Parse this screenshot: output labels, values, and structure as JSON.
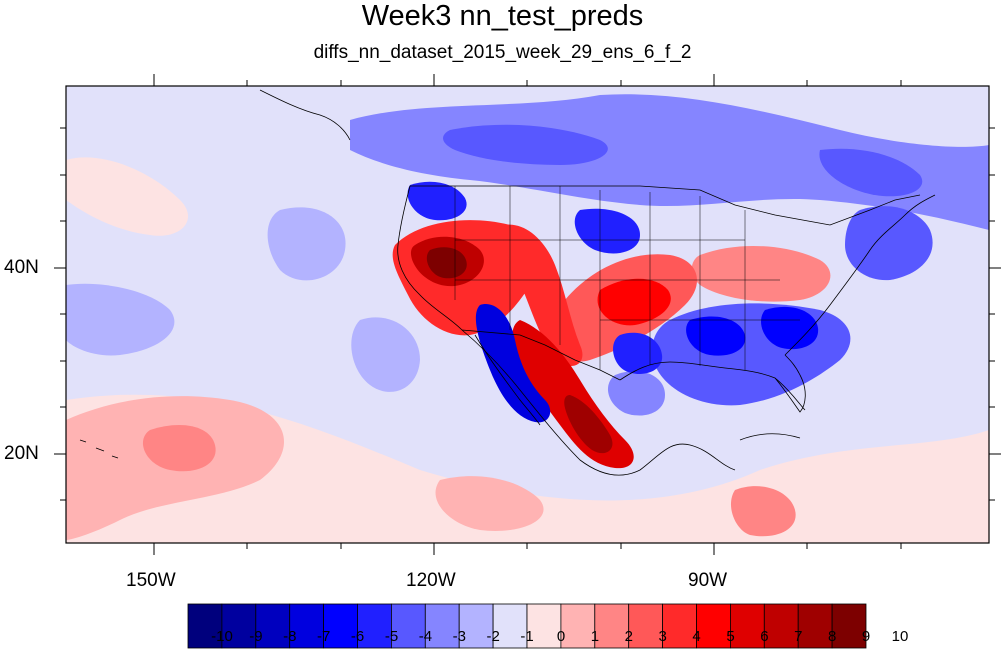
{
  "title": "Week3 nn_test_preds",
  "subtitle": "diffs_nn_dataset_2015_week_29_ens_6_f_2",
  "axes": {
    "x_tick_labels": [
      "150W",
      "120W",
      "90W"
    ],
    "y_tick_labels": [
      "40N",
      "20N"
    ]
  },
  "colorbar": {
    "labels": [
      "-10",
      "-9",
      "-8",
      "-7",
      "-6",
      "-5",
      "-4",
      "-3",
      "-2",
      "-1",
      "0",
      "1",
      "2",
      "3",
      "4",
      "5",
      "6",
      "7",
      "8",
      "9",
      "10"
    ],
    "colors": [
      "#00007d",
      "#00009f",
      "#0000bf",
      "#0000df",
      "#0000ff",
      "#2020ff",
      "#5858ff",
      "#8585ff",
      "#b3b3ff",
      "#e1e1fa",
      "#fde3e3",
      "#ffb3b3",
      "#ff8585",
      "#ff5858",
      "#ff2a2a",
      "#ff0000",
      "#df0000",
      "#bf0000",
      "#9f0000",
      "#7d0000"
    ]
  },
  "regions": [
    {
      "name": "ocean-background",
      "level": "-1"
    },
    {
      "name": "north-pacific-anomaly",
      "level": "-2"
    },
    {
      "name": "west-coast-warm-anomaly",
      "level": "8"
    },
    {
      "name": "baja-mexico-warm-anomaly",
      "level": "9"
    },
    {
      "name": "southwest-cold-anomaly",
      "level": "-6"
    },
    {
      "name": "southeast-cold-anomaly",
      "level": "-5"
    },
    {
      "name": "canada-cold-anomaly",
      "level": "-4"
    },
    {
      "name": "plains-warm-anomaly",
      "level": "5"
    },
    {
      "name": "ohio-valley-warm-anomaly",
      "level": "3"
    },
    {
      "name": "hawaii-warm-anomaly",
      "level": "2"
    }
  ]
}
